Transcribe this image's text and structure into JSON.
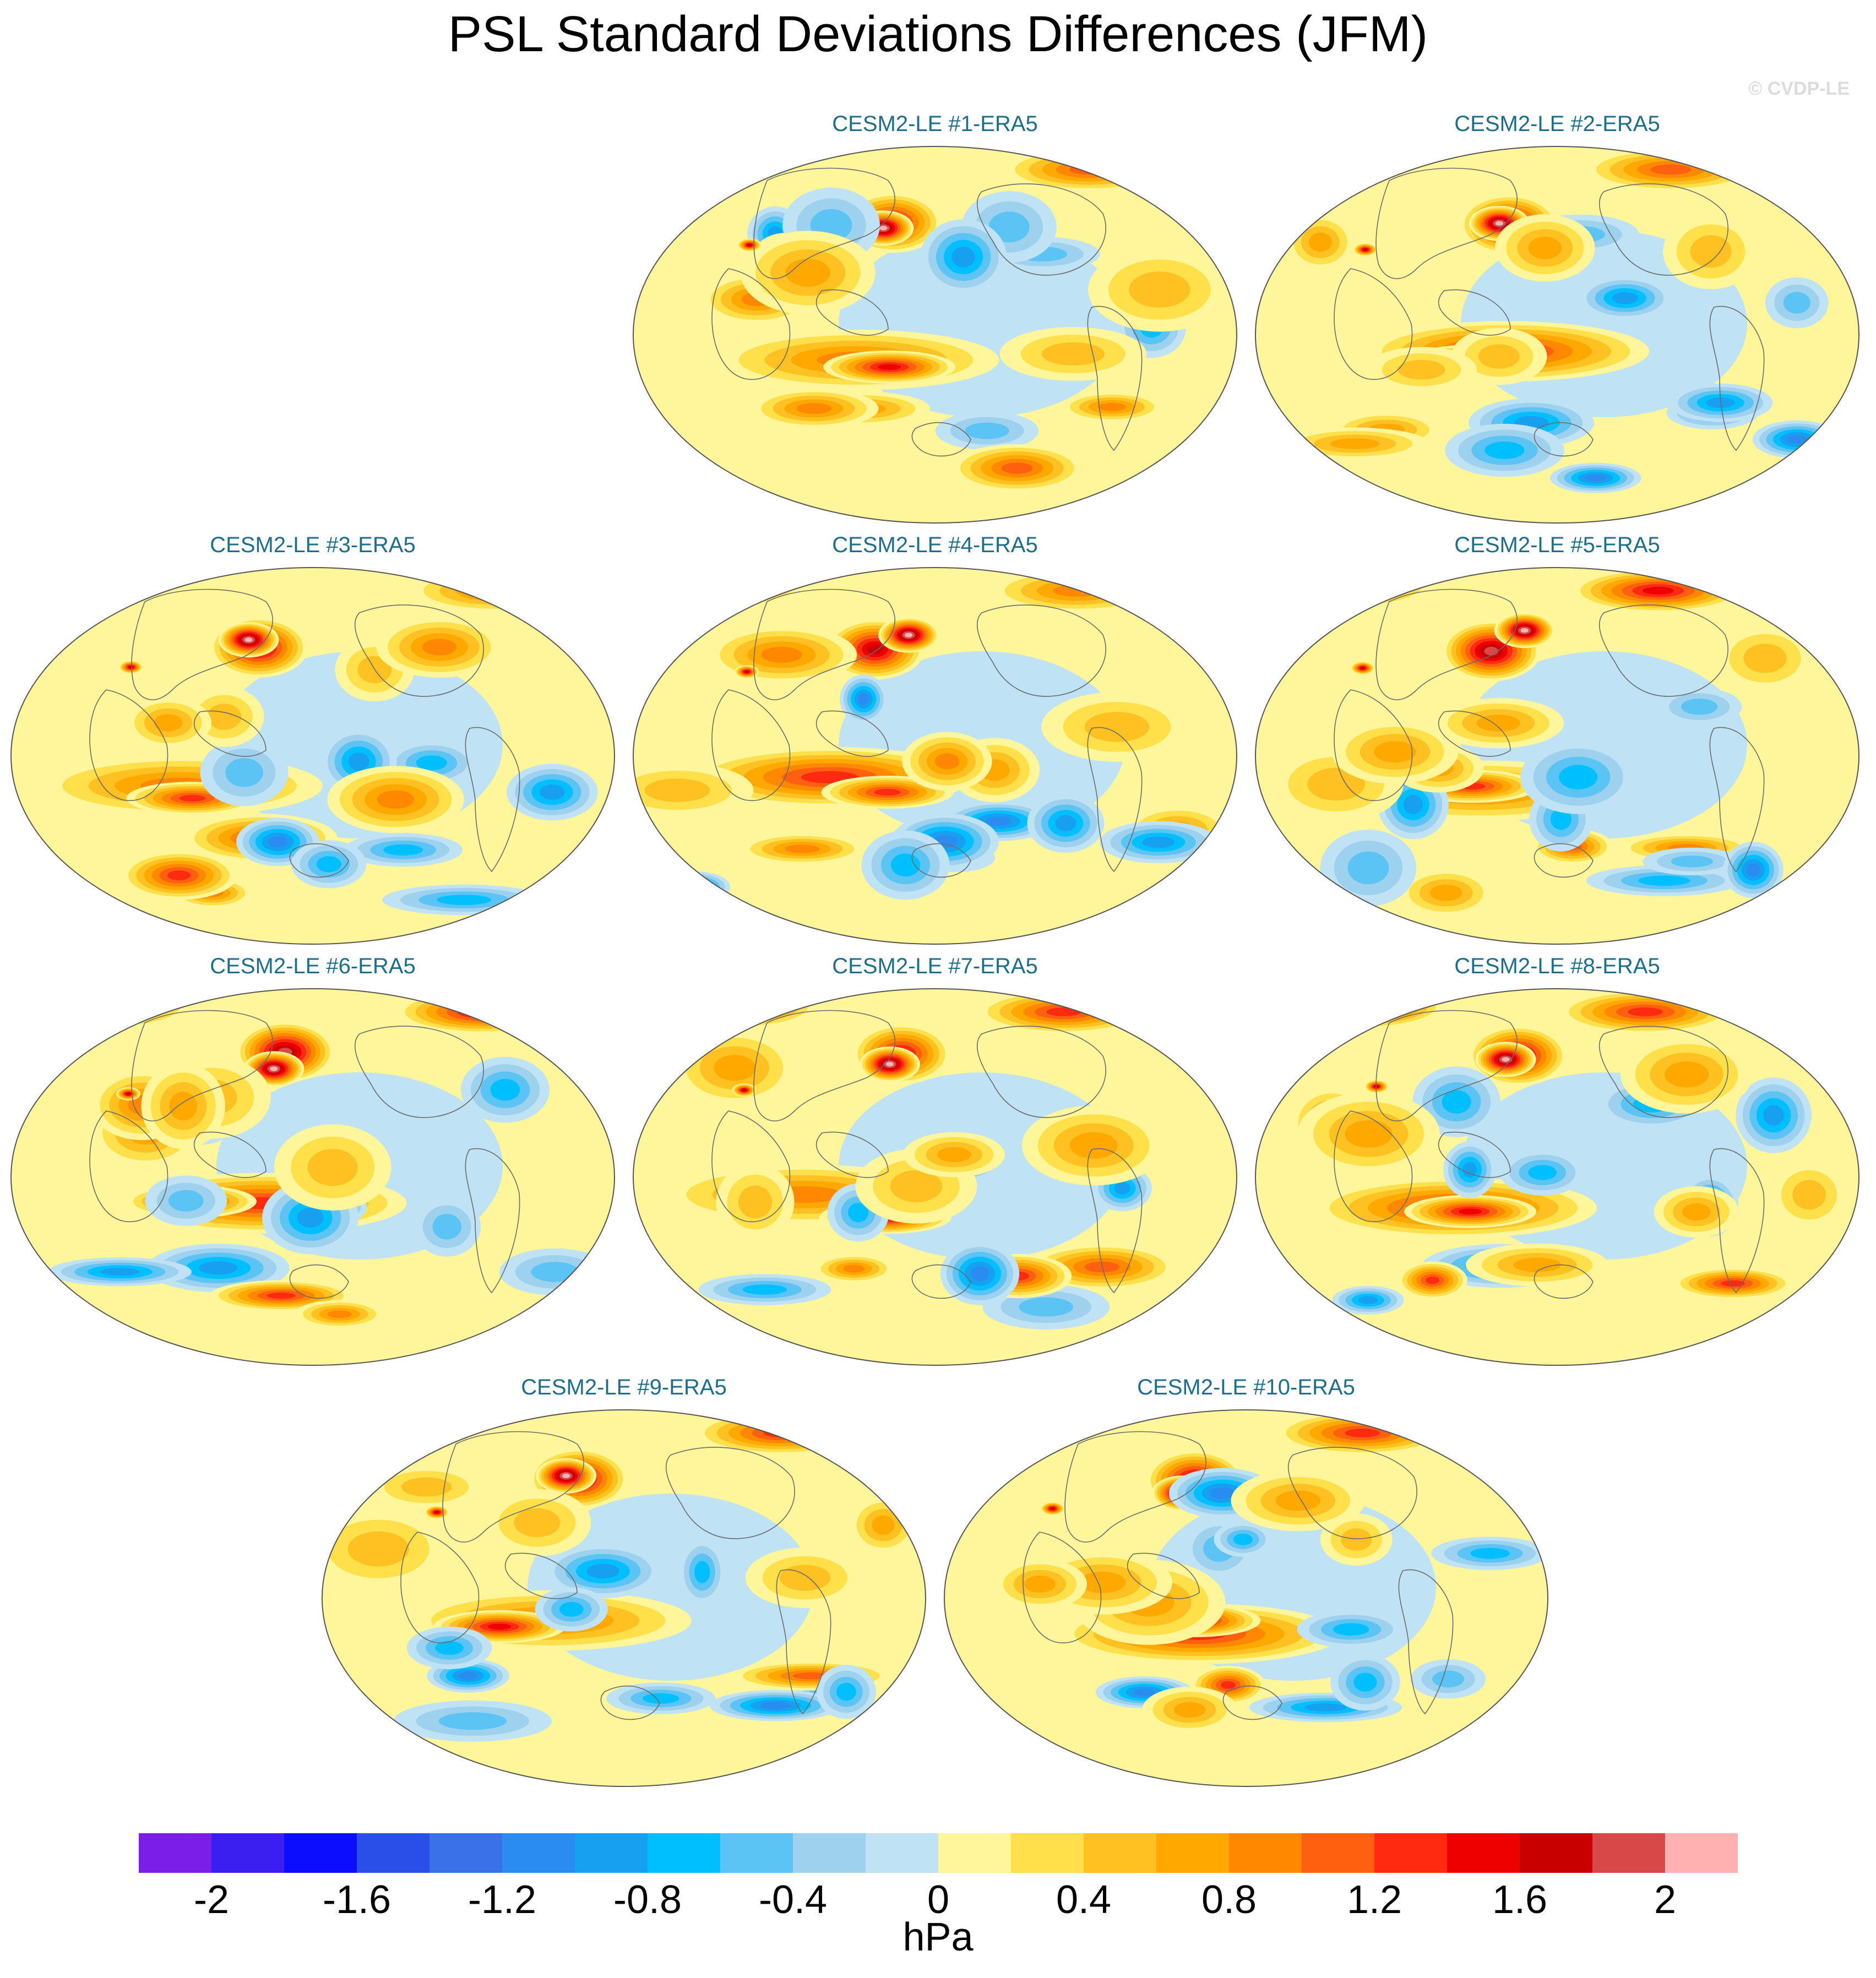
{
  "title": "PSL Standard Deviations Differences (JFM)",
  "credit": "© CVDP-LE",
  "panels": [
    {
      "label": "CESM2-LE #1-ERA5"
    },
    {
      "label": "CESM2-LE #2-ERA5"
    },
    {
      "label": "CESM2-LE #3-ERA5"
    },
    {
      "label": "CESM2-LE #4-ERA5"
    },
    {
      "label": "CESM2-LE #5-ERA5"
    },
    {
      "label": "CESM2-LE #6-ERA5"
    },
    {
      "label": "CESM2-LE #7-ERA5"
    },
    {
      "label": "CESM2-LE #8-ERA5"
    },
    {
      "label": "CESM2-LE #9-ERA5"
    },
    {
      "label": "CESM2-LE #10-ERA5"
    }
  ],
  "colorbar": {
    "unit": "hPa",
    "min": -2.2,
    "max": 2.2,
    "step": 0.2,
    "tick_labels": [
      "-2",
      "-1.6",
      "-1.2",
      "-0.8",
      "-0.4",
      "0",
      "0.4",
      "0.8",
      "1.2",
      "1.6",
      "2"
    ],
    "tick_values": [
      -2,
      -1.6,
      -1.2,
      -0.8,
      -0.4,
      0,
      0.4,
      0.8,
      1.2,
      1.6,
      2
    ],
    "colors": [
      "#7b1fe8",
      "#3a1ff0",
      "#0c0cff",
      "#2a4ee8",
      "#3a70e8",
      "#2a8cf0",
      "#18a0f0",
      "#00bfff",
      "#5cc4f4",
      "#9ed1ee",
      "#c0e2f5",
      "#fff59a",
      "#ffe04a",
      "#ffc021",
      "#ffa800",
      "#ff8800",
      "#ff6010",
      "#ff2a10",
      "#ee0000",
      "#c80000",
      "#d84848",
      "#ffb0b0"
    ]
  }
}
